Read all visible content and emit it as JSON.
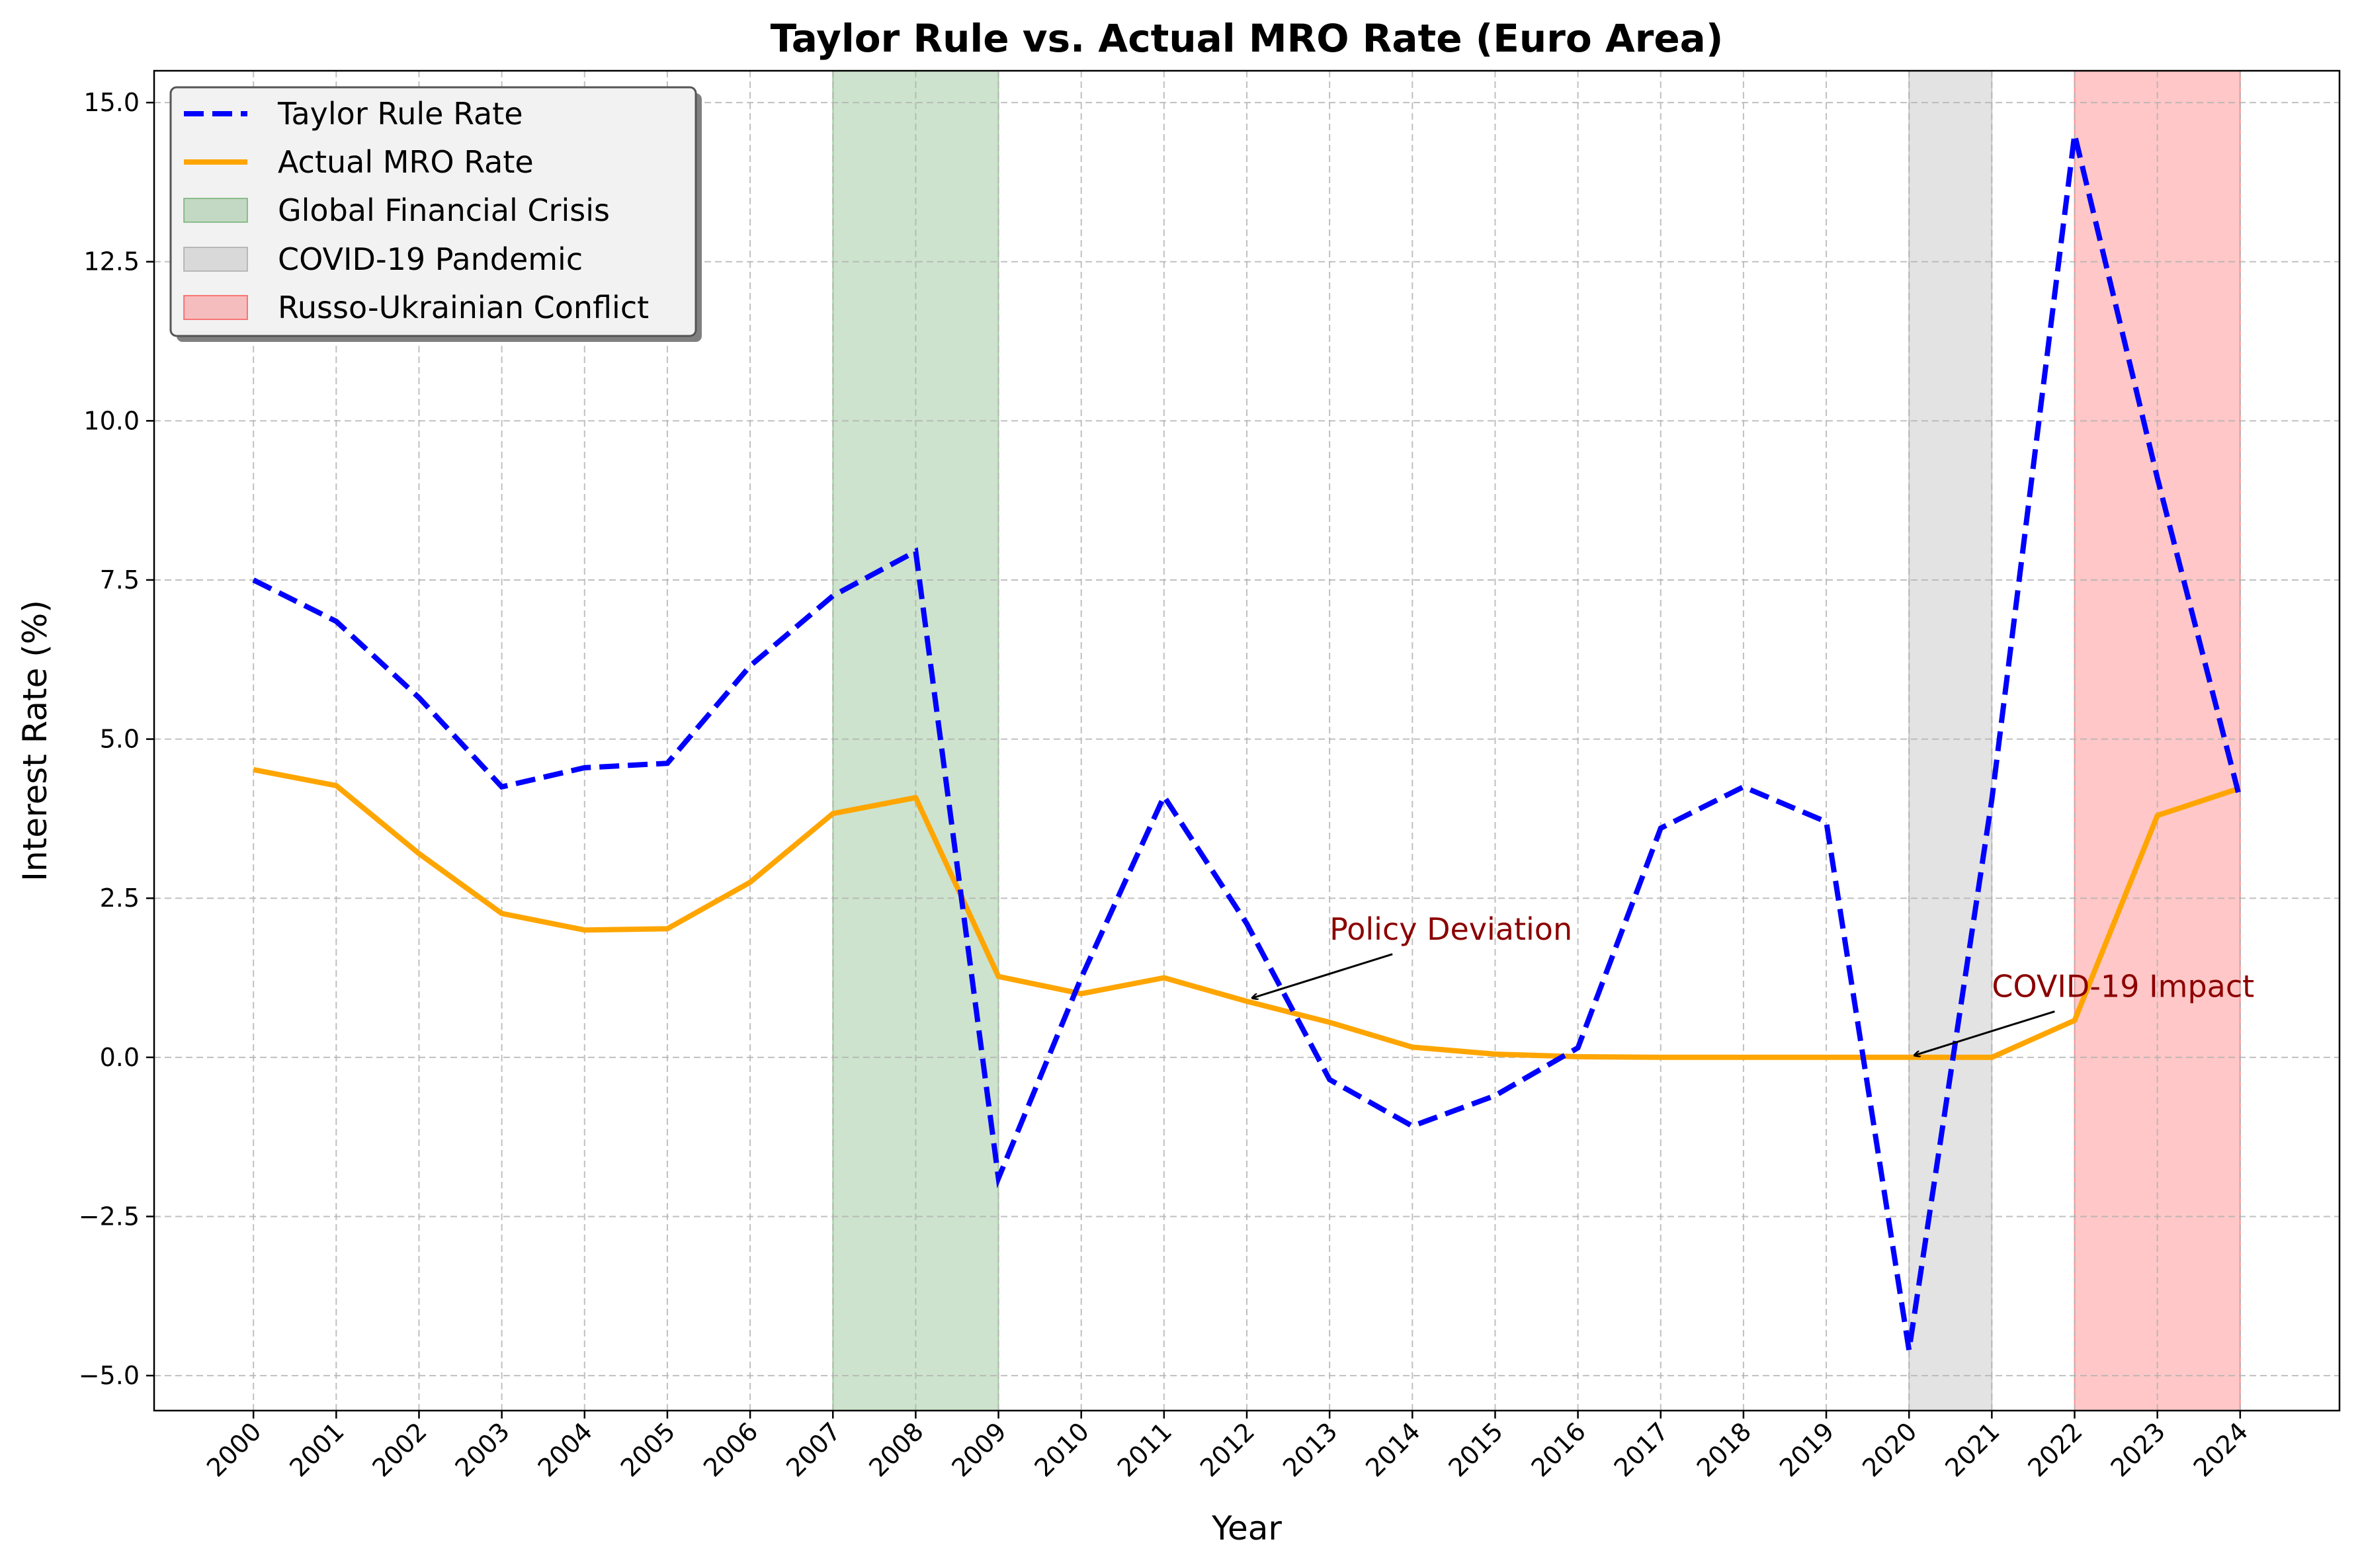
{
  "chart_data": {
    "type": "line",
    "title": "Taylor Rule vs. Actual MRO Rate (Euro Area)",
    "xlabel": "Year",
    "ylabel": "Interest Rate (%)",
    "xlim": [
      1998.8,
      2025.2
    ],
    "ylim": [
      -5.55,
      15.5
    ],
    "grid": true,
    "legend_position": "top-left",
    "x": [
      2000,
      2001,
      2002,
      2003,
      2004,
      2005,
      2006,
      2007,
      2008,
      2009,
      2010,
      2011,
      2012,
      2013,
      2014,
      2015,
      2016,
      2017,
      2018,
      2019,
      2020,
      2021,
      2022,
      2023,
      2024
    ],
    "x_tick_labels": [
      "2000",
      "2001",
      "2002",
      "2003",
      "2004",
      "2005",
      "2006",
      "2007",
      "2008",
      "2009",
      "2010",
      "2011",
      "2012",
      "2013",
      "2014",
      "2015",
      "2016",
      "2017",
      "2018",
      "2019",
      "2020",
      "2021",
      "2022",
      "2023",
      "2024"
    ],
    "y_ticks": [
      -5.0,
      -2.5,
      0.0,
      2.5,
      5.0,
      7.5,
      10.0,
      12.5,
      15.0
    ],
    "y_tick_labels": [
      "−5.0",
      "−2.5",
      "0.0",
      "2.5",
      "5.0",
      "7.5",
      "10.0",
      "12.5",
      "15.0"
    ],
    "series": [
      {
        "name": "Taylor Rule Rate",
        "color": "#0000ff",
        "style": "dashed",
        "values": [
          7.5,
          6.85,
          5.65,
          4.25,
          4.55,
          4.62,
          6.15,
          7.25,
          7.95,
          -1.9,
          1.25,
          4.1,
          2.1,
          -0.35,
          -1.08,
          -0.6,
          0.15,
          3.6,
          4.25,
          3.7,
          -4.6,
          4.05,
          14.5,
          9.1,
          4.05
        ]
      },
      {
        "name": "Actual MRO Rate",
        "color": "#ffa500",
        "style": "solid",
        "values": [
          4.52,
          4.27,
          3.2,
          2.26,
          2.0,
          2.02,
          2.75,
          3.83,
          4.08,
          1.27,
          1.0,
          1.25,
          0.88,
          0.55,
          0.16,
          0.05,
          0.01,
          0.0,
          0.0,
          0.0,
          0.0,
          0.0,
          0.58,
          3.8,
          4.23
        ]
      }
    ],
    "shaded_regions": [
      {
        "name": "Global Financial Crisis",
        "x_start": 2007,
        "x_end": 2009,
        "color": "#2e8b2e",
        "opacity": 0.24
      },
      {
        "name": "COVID-19 Pandemic",
        "x_start": 2020,
        "x_end": 2021,
        "color": "#808080",
        "opacity": 0.22
      },
      {
        "name": "Russo-Ukrainian Conflict",
        "x_start": 2022,
        "x_end": 2024,
        "color": "#ff0000",
        "opacity": 0.22
      }
    ],
    "annotations": [
      {
        "text": "Policy Deviation",
        "x": 2012,
        "y": 0.9,
        "text_x": 2013,
        "text_y": 1.85,
        "color": "#8b0000"
      },
      {
        "text": "COVID-19 Impact",
        "x": 2020,
        "y": 0.0,
        "text_x": 2021,
        "text_y": 0.95,
        "color": "#8b0000"
      }
    ]
  }
}
